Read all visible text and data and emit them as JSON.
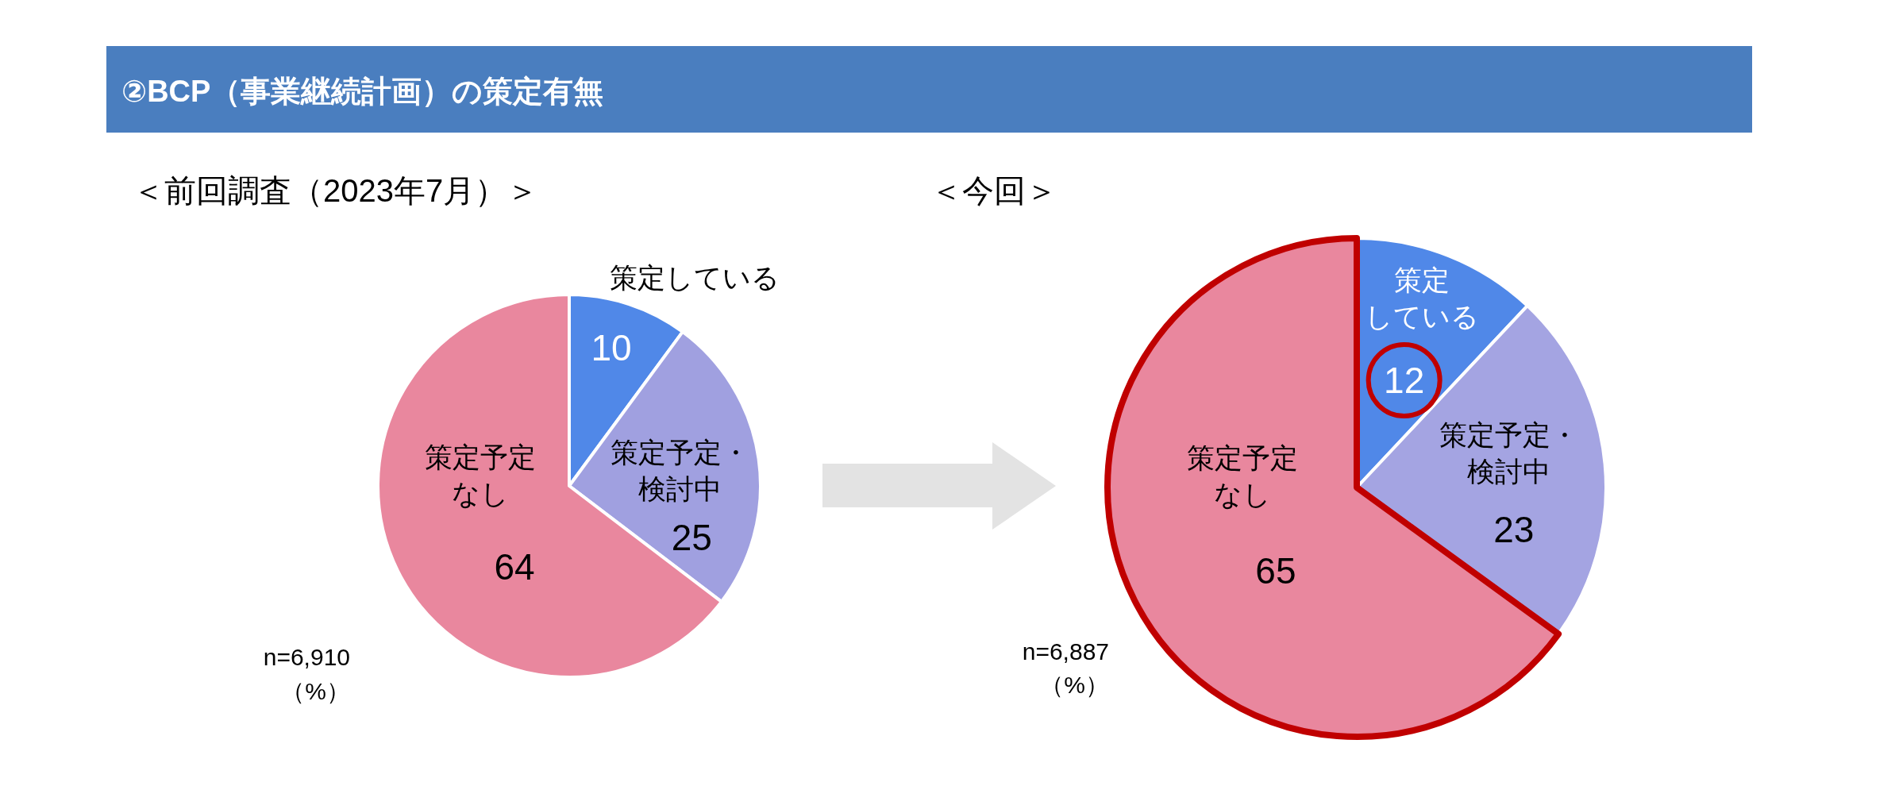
{
  "chart_data": [
    {
      "type": "pie",
      "title": "②BCP（事業継続計画）の策定有無",
      "subtitle": "＜前回調査（2023年7月）＞",
      "categories": [
        "策定している",
        "策定予定・検討中",
        "策定予定なし"
      ],
      "values": [
        10,
        25,
        64
      ],
      "colors": [
        "#5088E8",
        "#A0A0E0",
        "#E9879E"
      ],
      "data_labels": true,
      "annotations": [
        "n=6,910",
        "（%）"
      ]
    },
    {
      "type": "pie",
      "subtitle": "＜今回＞",
      "categories": [
        "策定している",
        "策定予定・検討中",
        "策定予定なし"
      ],
      "values": [
        12,
        23,
        65
      ],
      "colors": [
        "#5088E8",
        "#A4A4E2",
        "#E9879E"
      ],
      "data_labels": true,
      "annotations": [
        "n=6,887",
        "（%）"
      ]
    }
  ]
}
